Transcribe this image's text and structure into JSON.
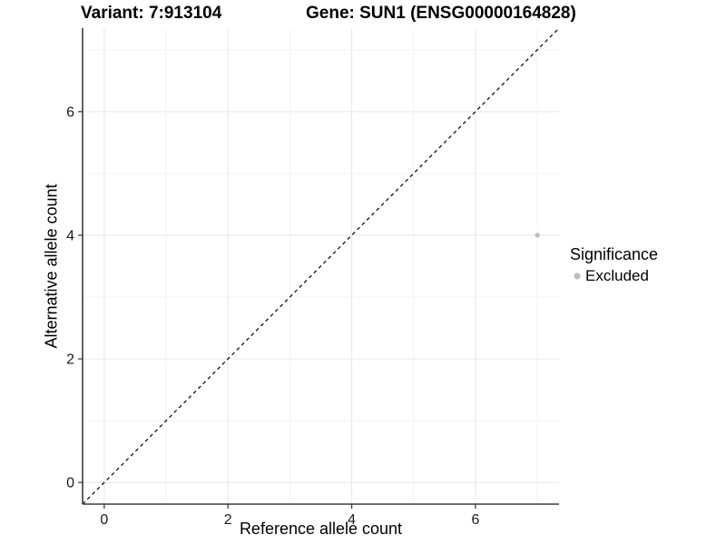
{
  "titles": {
    "variant": "Variant: 7:913104",
    "gene": "Gene: SUN1 (ENSG00000164828)"
  },
  "chart_data": {
    "type": "scatter",
    "xlabel": "Reference allele count",
    "ylabel": "Alternative allele count",
    "xlim": [
      -0.35,
      7.35
    ],
    "ylim": [
      -0.35,
      7.35
    ],
    "x_ticks": [
      0,
      2,
      4,
      6
    ],
    "y_ticks": [
      0,
      2,
      4,
      6
    ],
    "x_minor_ticks": [
      1,
      3,
      5,
      7
    ],
    "y_minor_ticks": [
      1,
      3,
      5,
      7
    ],
    "grid": true,
    "points": [
      {
        "x": 7,
        "y": 4,
        "series": "Excluded"
      }
    ],
    "identity_line": {
      "style": "dashed",
      "from": [
        -0.35,
        -0.35
      ],
      "to": [
        7.35,
        7.35
      ],
      "color": "#000000"
    },
    "legend": {
      "title": "Significance",
      "position": "right",
      "items": [
        {
          "label": "Excluded",
          "color": "#bebebe"
        }
      ]
    }
  },
  "colors": {
    "background": "#ffffff",
    "grid_major": "#e6e6e6",
    "grid_minor": "#f2f2f2",
    "axis_line": "#3c3c3c",
    "tick_mark": "#333333",
    "tick_text": "#1a1a1a",
    "point": "#bebebe"
  }
}
